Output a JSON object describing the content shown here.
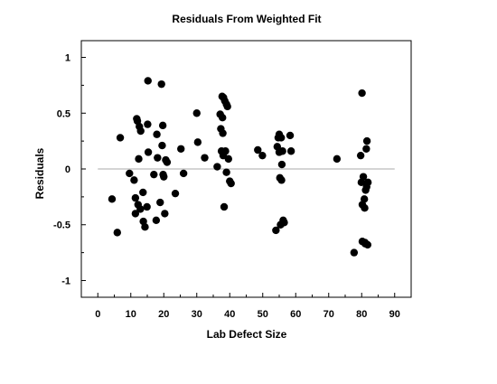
{
  "chart_data": {
    "type": "scatter",
    "title": "Residuals From Weighted Fit",
    "xlabel": "Lab Defect Size",
    "ylabel": "Residuals",
    "xlim": [
      -5,
      95
    ],
    "ylim": [
      -1.15,
      1.15
    ],
    "x_ticks": [
      0,
      10,
      20,
      30,
      40,
      50,
      60,
      70,
      80,
      90
    ],
    "y_ticks": [
      -1,
      -0.5,
      0,
      0.5,
      1
    ],
    "reference_line_y": 0,
    "grid": false,
    "marker_color": "#000000",
    "reference_line_color": "#aaaaaa",
    "points": [
      {
        "x": 4.3,
        "y": -0.27
      },
      {
        "x": 5.9,
        "y": -0.57
      },
      {
        "x": 6.8,
        "y": 0.28
      },
      {
        "x": 9.6,
        "y": -0.04
      },
      {
        "x": 11.0,
        "y": -0.1
      },
      {
        "x": 11.4,
        "y": -0.4
      },
      {
        "x": 11.4,
        "y": -0.26
      },
      {
        "x": 11.8,
        "y": 0.45
      },
      {
        "x": 12.0,
        "y": 0.43
      },
      {
        "x": 12.2,
        "y": -0.32
      },
      {
        "x": 12.4,
        "y": 0.09
      },
      {
        "x": 12.6,
        "y": 0.38
      },
      {
        "x": 12.9,
        "y": -0.36
      },
      {
        "x": 13.0,
        "y": 0.34
      },
      {
        "x": 13.8,
        "y": -0.47
      },
      {
        "x": 13.7,
        "y": -0.21
      },
      {
        "x": 14.3,
        "y": -0.52
      },
      {
        "x": 14.9,
        "y": -0.34
      },
      {
        "x": 15.1,
        "y": 0.4
      },
      {
        "x": 15.2,
        "y": 0.79
      },
      {
        "x": 15.3,
        "y": 0.15
      },
      {
        "x": 17.0,
        "y": -0.05
      },
      {
        "x": 17.7,
        "y": -0.46
      },
      {
        "x": 17.9,
        "y": 0.31
      },
      {
        "x": 18.1,
        "y": 0.1
      },
      {
        "x": 18.9,
        "y": -0.3
      },
      {
        "x": 19.3,
        "y": 0.76
      },
      {
        "x": 19.5,
        "y": 0.21
      },
      {
        "x": 19.7,
        "y": 0.39
      },
      {
        "x": 19.8,
        "y": -0.05
      },
      {
        "x": 20.0,
        "y": -0.07
      },
      {
        "x": 20.3,
        "y": -0.4
      },
      {
        "x": 20.6,
        "y": 0.08
      },
      {
        "x": 21.0,
        "y": 0.06
      },
      {
        "x": 23.5,
        "y": -0.22
      },
      {
        "x": 25.2,
        "y": 0.18
      },
      {
        "x": 26.0,
        "y": -0.04
      },
      {
        "x": 30.0,
        "y": 0.5
      },
      {
        "x": 30.3,
        "y": 0.24
      },
      {
        "x": 32.4,
        "y": 0.1
      },
      {
        "x": 36.2,
        "y": 0.02
      },
      {
        "x": 37.1,
        "y": 0.49
      },
      {
        "x": 37.3,
        "y": 0.36
      },
      {
        "x": 37.5,
        "y": 0.16
      },
      {
        "x": 37.7,
        "y": 0.65
      },
      {
        "x": 37.8,
        "y": 0.46
      },
      {
        "x": 37.9,
        "y": 0.32
      },
      {
        "x": 38.0,
        "y": 0.12
      },
      {
        "x": 38.1,
        "y": 0.64
      },
      {
        "x": 38.3,
        "y": -0.34
      },
      {
        "x": 38.5,
        "y": 0.61
      },
      {
        "x": 38.7,
        "y": 0.16
      },
      {
        "x": 39.0,
        "y": 0.58
      },
      {
        "x": 39.0,
        "y": -0.03
      },
      {
        "x": 39.3,
        "y": 0.56
      },
      {
        "x": 39.6,
        "y": 0.09
      },
      {
        "x": 40.0,
        "y": -0.11
      },
      {
        "x": 40.4,
        "y": -0.13
      },
      {
        "x": 48.5,
        "y": 0.17
      },
      {
        "x": 49.9,
        "y": 0.12
      },
      {
        "x": 54.0,
        "y": -0.55
      },
      {
        "x": 54.4,
        "y": 0.2
      },
      {
        "x": 54.7,
        "y": 0.28
      },
      {
        "x": 55.0,
        "y": 0.31
      },
      {
        "x": 55.0,
        "y": 0.15
      },
      {
        "x": 55.2,
        "y": -0.08
      },
      {
        "x": 55.4,
        "y": -0.5
      },
      {
        "x": 55.6,
        "y": 0.28
      },
      {
        "x": 55.7,
        "y": -0.1
      },
      {
        "x": 55.8,
        "y": 0.04
      },
      {
        "x": 56.0,
        "y": 0.16
      },
      {
        "x": 56.2,
        "y": -0.46
      },
      {
        "x": 56.5,
        "y": -0.48
      },
      {
        "x": 58.3,
        "y": 0.3
      },
      {
        "x": 58.6,
        "y": 0.16
      },
      {
        "x": 72.5,
        "y": 0.09
      },
      {
        "x": 77.7,
        "y": -0.75
      },
      {
        "x": 79.7,
        "y": 0.12
      },
      {
        "x": 79.9,
        "y": -0.12
      },
      {
        "x": 80.1,
        "y": 0.68
      },
      {
        "x": 80.2,
        "y": -0.32
      },
      {
        "x": 80.2,
        "y": -0.65
      },
      {
        "x": 80.5,
        "y": -0.07
      },
      {
        "x": 80.8,
        "y": -0.27
      },
      {
        "x": 80.9,
        "y": -0.35
      },
      {
        "x": 81.0,
        "y": -0.66
      },
      {
        "x": 81.1,
        "y": -0.67
      },
      {
        "x": 81.2,
        "y": -0.19
      },
      {
        "x": 81.4,
        "y": 0.18
      },
      {
        "x": 81.5,
        "y": -0.16
      },
      {
        "x": 81.6,
        "y": 0.25
      },
      {
        "x": 81.8,
        "y": -0.68
      },
      {
        "x": 81.9,
        "y": -0.12
      }
    ]
  }
}
